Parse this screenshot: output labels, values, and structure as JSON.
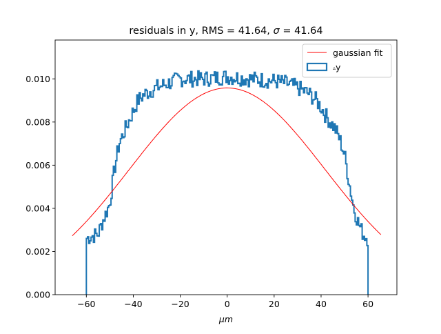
{
  "chart_data": {
    "type": "histogram",
    "title_prefix": "residuals in y, RMS = 41.64, ",
    "title_sigma": "σ",
    "title_suffix": " = 41.64",
    "xlabel": "μm",
    "ylabel": "",
    "xlim": [
      -73.3,
      72.3
    ],
    "ylim": [
      0,
      0.0118
    ],
    "xticks": [
      -60,
      -40,
      -20,
      0,
      20,
      40,
      60
    ],
    "xtick_labels": [
      "−60",
      "−40",
      "−20",
      "0",
      "20",
      "40",
      "60"
    ],
    "yticks": [
      0,
      0.002,
      0.004,
      0.006,
      0.008,
      0.01
    ],
    "ytick_labels": [
      "0.000",
      "0.002",
      "0.004",
      "0.006",
      "0.008",
      "0.010"
    ],
    "legend_position": "top-right",
    "series": [
      {
        "name": "gaussian fit",
        "kind": "line",
        "color": "#ff0000",
        "amplitude": 0.00958,
        "mean": 0.0,
        "sigma": 41.64,
        "x_range": [
          -66,
          65.5
        ]
      },
      {
        "name": "y",
        "legend_prefix": "▵",
        "kind": "step-histogram",
        "color": "#1f77b4",
        "bin_edges": [
          -60,
          60
        ],
        "profile_anchors": {
          "x": [
            -60,
            -58,
            -55,
            -53,
            -50,
            -48,
            -46,
            -44,
            -42,
            -40,
            -38,
            -35,
            -30,
            -25,
            -20,
            -10,
            0,
            10,
            20,
            25,
            30,
            35,
            38,
            40,
            42,
            44,
            46,
            48,
            50,
            52,
            54,
            56,
            58,
            60
          ],
          "y": [
            0.0026,
            0.0027,
            0.0028,
            0.0034,
            0.0042,
            0.0058,
            0.007,
            0.0075,
            0.008,
            0.0085,
            0.009,
            0.0093,
            0.0096,
            0.0098,
            0.01,
            0.01,
            0.0101,
            0.01,
            0.0099,
            0.0098,
            0.0096,
            0.0093,
            0.009,
            0.0087,
            0.0083,
            0.008,
            0.0077,
            0.0072,
            0.0065,
            0.0052,
            0.004,
            0.0033,
            0.0028,
            0.0026
          ]
        }
      }
    ]
  }
}
